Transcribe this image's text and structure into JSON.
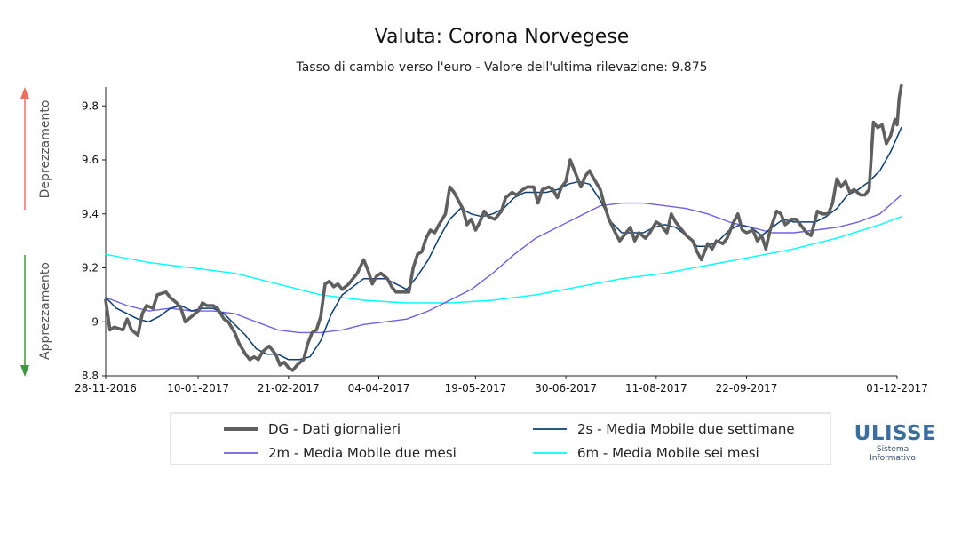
{
  "chart_data": {
    "type": "line",
    "title": "Valuta: Corona Norvegese",
    "subtitle": "Tasso di cambio verso l'euro - Valore dell'ultima rilevazione: 9.875",
    "ylim": [
      8.8,
      9.87
    ],
    "yticks": [
      {
        "value": 8.8,
        "label": "8.8"
      },
      {
        "value": 9.0,
        "label": "9"
      },
      {
        "value": 9.2,
        "label": "9.2"
      },
      {
        "value": 9.4,
        "label": "9.4"
      },
      {
        "value": 9.6,
        "label": "9.6"
      },
      {
        "value": 9.8,
        "label": "9.8"
      }
    ],
    "xlim": [
      0,
      368
    ],
    "xticks": [
      {
        "value": 0,
        "label": "28-11-2016"
      },
      {
        "value": 43,
        "label": "10-01-2017"
      },
      {
        "value": 85,
        "label": "21-02-2017"
      },
      {
        "value": 127,
        "label": "04-04-2017"
      },
      {
        "value": 172,
        "label": "19-05-2017"
      },
      {
        "value": 214,
        "label": "30-06-2017"
      },
      {
        "value": 256,
        "label": "11-08-2017"
      },
      {
        "value": 298,
        "label": "22-09-2017"
      },
      {
        "value": 368,
        "label": "01-12-2017"
      }
    ],
    "side_labels": {
      "up": "Deprezzamento",
      "down": "Apprezzamento"
    },
    "series": [
      {
        "key": "dg",
        "name": "DG - Dati giornalieri",
        "color": "#5f5f5f",
        "points": [
          [
            0,
            9.08
          ],
          [
            2,
            8.97
          ],
          [
            4,
            8.98
          ],
          [
            8,
            8.97
          ],
          [
            10,
            9.01
          ],
          [
            12,
            8.97
          ],
          [
            15,
            8.95
          ],
          [
            17,
            9.03
          ],
          [
            19,
            9.06
          ],
          [
            22,
            9.05
          ],
          [
            24,
            9.1
          ],
          [
            28,
            9.11
          ],
          [
            30,
            9.09
          ],
          [
            33,
            9.07
          ],
          [
            35,
            9.05
          ],
          [
            37,
            9.0
          ],
          [
            40,
            9.02
          ],
          [
            43,
            9.04
          ],
          [
            45,
            9.07
          ],
          [
            47,
            9.06
          ],
          [
            50,
            9.06
          ],
          [
            52,
            9.05
          ],
          [
            55,
            9.01
          ],
          [
            57,
            9.0
          ],
          [
            60,
            8.96
          ],
          [
            62,
            8.92
          ],
          [
            65,
            8.88
          ],
          [
            67,
            8.86
          ],
          [
            69,
            8.87
          ],
          [
            71,
            8.86
          ],
          [
            73,
            8.89
          ],
          [
            76,
            8.91
          ],
          [
            79,
            8.88
          ],
          [
            81,
            8.84
          ],
          [
            83,
            8.85
          ],
          [
            85,
            8.83
          ],
          [
            87,
            8.82
          ],
          [
            89,
            8.84
          ],
          [
            92,
            8.86
          ],
          [
            94,
            8.92
          ],
          [
            96,
            8.96
          ],
          [
            98,
            8.97
          ],
          [
            100,
            9.02
          ],
          [
            102,
            9.14
          ],
          [
            104,
            9.15
          ],
          [
            106,
            9.13
          ],
          [
            108,
            9.14
          ],
          [
            110,
            9.12
          ],
          [
            113,
            9.14
          ],
          [
            115,
            9.16
          ],
          [
            117,
            9.18
          ],
          [
            120,
            9.23
          ],
          [
            122,
            9.19
          ],
          [
            124,
            9.14
          ],
          [
            126,
            9.17
          ],
          [
            128,
            9.18
          ],
          [
            131,
            9.16
          ],
          [
            133,
            9.13
          ],
          [
            135,
            9.11
          ],
          [
            138,
            9.11
          ],
          [
            141,
            9.11
          ],
          [
            143,
            9.2
          ],
          [
            145,
            9.25
          ],
          [
            147,
            9.26
          ],
          [
            149,
            9.31
          ],
          [
            151,
            9.34
          ],
          [
            153,
            9.33
          ],
          [
            155,
            9.36
          ],
          [
            158,
            9.4
          ],
          [
            160,
            9.5
          ],
          [
            162,
            9.48
          ],
          [
            164,
            9.45
          ],
          [
            166,
            9.42
          ],
          [
            168,
            9.36
          ],
          [
            170,
            9.38
          ],
          [
            172,
            9.34
          ],
          [
            174,
            9.37
          ],
          [
            176,
            9.41
          ],
          [
            178,
            9.39
          ],
          [
            181,
            9.38
          ],
          [
            184,
            9.41
          ],
          [
            186,
            9.46
          ],
          [
            189,
            9.48
          ],
          [
            191,
            9.47
          ],
          [
            194,
            9.49
          ],
          [
            196,
            9.5
          ],
          [
            199,
            9.5
          ],
          [
            201,
            9.44
          ],
          [
            203,
            9.49
          ],
          [
            206,
            9.5
          ],
          [
            208,
            9.49
          ],
          [
            210,
            9.46
          ],
          [
            212,
            9.5
          ],
          [
            214,
            9.52
          ],
          [
            216,
            9.6
          ],
          [
            218,
            9.56
          ],
          [
            221,
            9.5
          ],
          [
            223,
            9.54
          ],
          [
            225,
            9.56
          ],
          [
            227,
            9.53
          ],
          [
            230,
            9.49
          ],
          [
            232,
            9.43
          ],
          [
            234,
            9.38
          ],
          [
            237,
            9.33
          ],
          [
            239,
            9.3
          ],
          [
            242,
            9.33
          ],
          [
            244,
            9.35
          ],
          [
            246,
            9.3
          ],
          [
            248,
            9.33
          ],
          [
            251,
            9.31
          ],
          [
            253,
            9.33
          ],
          [
            256,
            9.37
          ],
          [
            258,
            9.36
          ],
          [
            261,
            9.33
          ],
          [
            263,
            9.4
          ],
          [
            265,
            9.37
          ],
          [
            268,
            9.34
          ],
          [
            270,
            9.32
          ],
          [
            273,
            9.3
          ],
          [
            275,
            9.26
          ],
          [
            277,
            9.23
          ],
          [
            280,
            9.29
          ],
          [
            282,
            9.27
          ],
          [
            284,
            9.3
          ],
          [
            287,
            9.29
          ],
          [
            289,
            9.31
          ],
          [
            292,
            9.37
          ],
          [
            294,
            9.4
          ],
          [
            296,
            9.34
          ],
          [
            298,
            9.33
          ],
          [
            301,
            9.34
          ],
          [
            303,
            9.3
          ],
          [
            305,
            9.32
          ],
          [
            307,
            9.27
          ],
          [
            309,
            9.34
          ],
          [
            312,
            9.41
          ],
          [
            314,
            9.4
          ],
          [
            316,
            9.36
          ],
          [
            319,
            9.38
          ],
          [
            321,
            9.38
          ],
          [
            324,
            9.35
          ],
          [
            326,
            9.33
          ],
          [
            328,
            9.32
          ],
          [
            331,
            9.41
          ],
          [
            333,
            9.4
          ],
          [
            336,
            9.4
          ],
          [
            338,
            9.44
          ],
          [
            340,
            9.53
          ],
          [
            342,
            9.5
          ],
          [
            344,
            9.52
          ],
          [
            346,
            9.48
          ],
          [
            348,
            9.49
          ],
          [
            351,
            9.47
          ],
          [
            353,
            9.47
          ],
          [
            355,
            9.49
          ],
          [
            357,
            9.74
          ],
          [
            359,
            9.72
          ],
          [
            361,
            9.73
          ],
          [
            363,
            9.66
          ],
          [
            365,
            9.69
          ],
          [
            367,
            9.75
          ],
          [
            368,
            9.73
          ],
          [
            369,
            9.83
          ],
          [
            370,
            9.875
          ]
        ]
      },
      {
        "key": "ma2s",
        "name": "2s - Media Mobile due settimane",
        "color": "#0b3d73",
        "points": [
          [
            0,
            9.09
          ],
          [
            5,
            9.05
          ],
          [
            10,
            9.03
          ],
          [
            15,
            9.01
          ],
          [
            20,
            9.0
          ],
          [
            25,
            9.02
          ],
          [
            30,
            9.05
          ],
          [
            35,
            9.06
          ],
          [
            40,
            9.04
          ],
          [
            45,
            9.05
          ],
          [
            50,
            9.05
          ],
          [
            55,
            9.03
          ],
          [
            60,
            8.99
          ],
          [
            65,
            8.95
          ],
          [
            70,
            8.9
          ],
          [
            75,
            8.88
          ],
          [
            80,
            8.88
          ],
          [
            85,
            8.86
          ],
          [
            90,
            8.86
          ],
          [
            95,
            8.87
          ],
          [
            100,
            8.93
          ],
          [
            105,
            9.03
          ],
          [
            110,
            9.1
          ],
          [
            115,
            9.13
          ],
          [
            120,
            9.16
          ],
          [
            125,
            9.16
          ],
          [
            130,
            9.16
          ],
          [
            135,
            9.14
          ],
          [
            140,
            9.12
          ],
          [
            145,
            9.17
          ],
          [
            150,
            9.23
          ],
          [
            155,
            9.31
          ],
          [
            160,
            9.38
          ],
          [
            165,
            9.42
          ],
          [
            170,
            9.4
          ],
          [
            175,
            9.39
          ],
          [
            180,
            9.4
          ],
          [
            185,
            9.42
          ],
          [
            190,
            9.46
          ],
          [
            195,
            9.48
          ],
          [
            200,
            9.48
          ],
          [
            205,
            9.48
          ],
          [
            210,
            9.49
          ],
          [
            215,
            9.51
          ],
          [
            220,
            9.52
          ],
          [
            225,
            9.51
          ],
          [
            230,
            9.45
          ],
          [
            235,
            9.37
          ],
          [
            240,
            9.33
          ],
          [
            245,
            9.33
          ],
          [
            250,
            9.33
          ],
          [
            255,
            9.35
          ],
          [
            260,
            9.36
          ],
          [
            265,
            9.35
          ],
          [
            270,
            9.32
          ],
          [
            275,
            9.28
          ],
          [
            280,
            9.28
          ],
          [
            285,
            9.3
          ],
          [
            290,
            9.34
          ],
          [
            295,
            9.36
          ],
          [
            300,
            9.35
          ],
          [
            305,
            9.32
          ],
          [
            310,
            9.35
          ],
          [
            315,
            9.38
          ],
          [
            320,
            9.37
          ],
          [
            325,
            9.37
          ],
          [
            330,
            9.37
          ],
          [
            335,
            9.39
          ],
          [
            340,
            9.42
          ],
          [
            345,
            9.47
          ],
          [
            350,
            9.49
          ],
          [
            355,
            9.52
          ],
          [
            360,
            9.56
          ],
          [
            365,
            9.63
          ],
          [
            370,
            9.72
          ]
        ]
      },
      {
        "key": "ma2m",
        "name": "2m - Media Mobile due mesi",
        "color": "#7060e0",
        "points": [
          [
            0,
            9.09
          ],
          [
            10,
            9.06
          ],
          [
            20,
            9.04
          ],
          [
            30,
            9.05
          ],
          [
            40,
            9.04
          ],
          [
            50,
            9.04
          ],
          [
            60,
            9.03
          ],
          [
            70,
            9.0
          ],
          [
            80,
            8.97
          ],
          [
            90,
            8.96
          ],
          [
            100,
            8.96
          ],
          [
            110,
            8.97
          ],
          [
            120,
            8.99
          ],
          [
            130,
            9.0
          ],
          [
            140,
            9.01
          ],
          [
            150,
            9.04
          ],
          [
            160,
            9.08
          ],
          [
            170,
            9.12
          ],
          [
            180,
            9.18
          ],
          [
            190,
            9.25
          ],
          [
            200,
            9.31
          ],
          [
            210,
            9.35
          ],
          [
            220,
            9.39
          ],
          [
            230,
            9.43
          ],
          [
            240,
            9.44
          ],
          [
            250,
            9.44
          ],
          [
            260,
            9.43
          ],
          [
            270,
            9.42
          ],
          [
            280,
            9.4
          ],
          [
            290,
            9.37
          ],
          [
            300,
            9.35
          ],
          [
            310,
            9.33
          ],
          [
            320,
            9.33
          ],
          [
            330,
            9.34
          ],
          [
            340,
            9.35
          ],
          [
            350,
            9.37
          ],
          [
            360,
            9.4
          ],
          [
            370,
            9.47
          ]
        ]
      },
      {
        "key": "ma6m",
        "name": "6m - Media Mobile sei mesi",
        "color": "#00ffff",
        "points": [
          [
            0,
            9.25
          ],
          [
            20,
            9.22
          ],
          [
            40,
            9.2
          ],
          [
            60,
            9.18
          ],
          [
            80,
            9.14
          ],
          [
            100,
            9.1
          ],
          [
            120,
            9.08
          ],
          [
            140,
            9.07
          ],
          [
            160,
            9.07
          ],
          [
            180,
            9.08
          ],
          [
            200,
            9.1
          ],
          [
            220,
            9.13
          ],
          [
            240,
            9.16
          ],
          [
            260,
            9.18
          ],
          [
            280,
            9.21
          ],
          [
            300,
            9.24
          ],
          [
            320,
            9.27
          ],
          [
            340,
            9.31
          ],
          [
            360,
            9.36
          ],
          [
            370,
            9.39
          ]
        ]
      }
    ]
  },
  "legend": {
    "items": [
      {
        "key": "dg",
        "label": "DG - Dati giornalieri"
      },
      {
        "key": "ma2s",
        "label": "2s - Media Mobile due settimane"
      },
      {
        "key": "ma2m",
        "label": "2m - Media Mobile due mesi"
      },
      {
        "key": "ma6m",
        "label": "6m - Media Mobile sei mesi"
      }
    ]
  },
  "logo": {
    "name": "ULISSE",
    "line1": "Sistema",
    "line2": "Informativo"
  },
  "colors": {
    "arrow_up": "#f07060",
    "arrow_down": "#3a9a3a",
    "logo": "#3a6e9e"
  }
}
